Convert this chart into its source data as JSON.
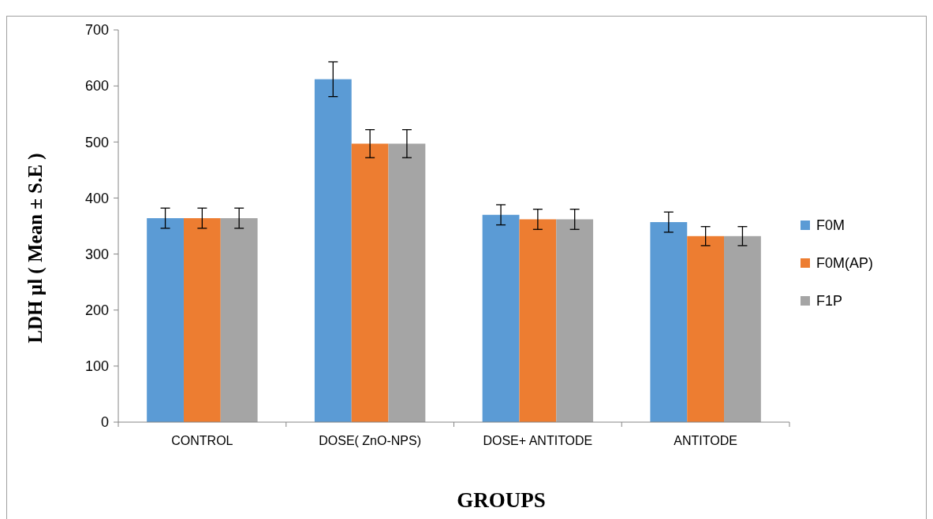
{
  "chart_data": {
    "type": "bar",
    "xlabel": "GROUPS",
    "ylabel": "LDH µl ( Mean ± S.E )",
    "categories": [
      "CONTROL",
      "DOSE( ZnO-NPS)",
      "DOSE+ ANTITODE",
      "ANTITODE"
    ],
    "series": [
      {
        "name": "F0M",
        "color": "#5b9bd5",
        "values": [
          364,
          612,
          370,
          357
        ],
        "errors": [
          18,
          31,
          18,
          18
        ]
      },
      {
        "name": "F0M(AP)",
        "color": "#ed7d31",
        "values": [
          364,
          497,
          362,
          332
        ],
        "errors": [
          18,
          25,
          18,
          17
        ]
      },
      {
        "name": "F1P",
        "color": "#a5a5a5",
        "values": [
          364,
          497,
          362,
          332
        ],
        "errors": [
          18,
          25,
          18,
          17
        ]
      }
    ],
    "ylim": [
      0,
      700
    ],
    "yticks": [
      0,
      100,
      200,
      300,
      400,
      500,
      600,
      700
    ],
    "grid": false,
    "legend": "right"
  }
}
